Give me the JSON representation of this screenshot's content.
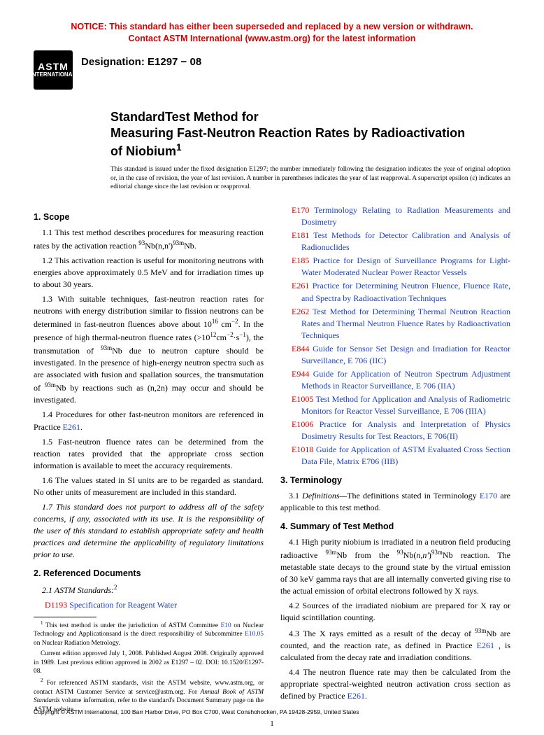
{
  "notice": {
    "line1": "NOTICE: This standard has either been superseded and replaced by a new version or withdrawn.",
    "line2": "Contact ASTM International (www.astm.org) for the latest information"
  },
  "logo": {
    "top": "ASTM",
    "bottom": "INTERNATIONAL"
  },
  "designation": "Designation: E1297 − 08",
  "title": {
    "l1": "StandardTest Method for",
    "l2": "Measuring Fast-Neutron Reaction Rates by Radioactivation",
    "l3": "of Niobium"
  },
  "issue_note": "This standard is issued under the fixed designation E1297; the number immediately following the designation indicates the year of original adoption or, in the case of revision, the year of last revision. A number in parentheses indicates the year of last reapproval. A superscript epsilon (ε) indicates an editorial change since the last revision or reapproval.",
  "sections": {
    "scope_head": "1. Scope",
    "s11a": "1.1 This test method describes procedures for measuring reaction rates by the activation reaction ",
    "s11b": "Nb(n,n')",
    "s11c": "Nb.",
    "s12": "1.2 This activation reaction is useful for monitoring neutrons with energies above approximately 0.5 MeV and for irradiation times up to about 30 years.",
    "s13a": "1.3 With suitable techniques, fast-neutron reaction rates for neutrons with energy distribution similar to fission neutrons can be determined in fast-neutron fluences above about 10",
    "s13b": " cm",
    "s13c": ". In the presence of high thermal-neutron fluence rates (>10",
    "s13d": "cm",
    "s13e": "·s",
    "s13f": "), the transmutation of ",
    "s13g": "Nb due to neutron capture should be investigated. In the presence of high-energy neutron spectra such as are associated with fusion and spallation sources, the transmutation of ",
    "s13h": "Nb by reactions such as (n,2n) may occur and should be investigated.",
    "s14a": "1.4 Procedures for other fast-neutron monitors are referenced in Practice ",
    "s14b": ".",
    "s15": "1.5 Fast-neutron fluence rates can be determined from the reaction rates provided that the appropriate cross section information is available to meet the accuracy requirements.",
    "s16": "1.6 The values stated in SI units are to be regarded as standard. No other units of measurement are included in this standard.",
    "s17": "1.7 This standard does not purport to address all of the safety concerns, if any, associated with its use. It is the responsibility of the user of this standard to establish appropriate safety and health practices and determine the applicability of regulatory limitations prior to use.",
    "ref_head": "2. Referenced Documents",
    "s21": "2.1 ASTM Standards:",
    "term_head": "3. Terminology",
    "s31a": "3.1 ",
    "s31b": "Definitions—",
    "s31c": "The definitions stated in Terminology ",
    "s31d": " are applicable to this test method.",
    "sum_head": "4. Summary of Test Method",
    "s41a": "4.1 High purity niobium is irradiated in a neutron field producing radioactive ",
    "s41b": "Nb from the ",
    "s41c": "Nb(",
    "s41d": "n,n'",
    "s41e": ")",
    "s41f": "Nb reaction. The metastable state decays to the ground state by the virtual emission of 30 keV gamma rays that are all internally converted giving rise to the actual emission of orbital electrons followed by X rays.",
    "s42": "4.2 Sources of the irradiated niobium are prepared for X ray or liquid scintillation counting.",
    "s43a": "4.3 The X rays emitted as a result of the decay of ",
    "s43b": "Nb are counted, and the reaction rate, as defined in Practice ",
    "s43c": " , is calculated from the decay rate and irradiation conditions.",
    "s44a": "4.4 The neutron fluence rate may then be calculated from the appropriate spectral-weighted neutron activation cross section as defined by Practice ",
    "s44b": "."
  },
  "refs": [
    {
      "id": "D1193",
      "t": "Specification for Reagent Water"
    },
    {
      "id": "E170",
      "t": "Terminology Relating to Radiation Measurements and Dosimetry"
    },
    {
      "id": "E181",
      "t": "Test Methods for Detector Calibration and Analysis of Radionuclides"
    },
    {
      "id": "E185",
      "t": "Practice for Design of Surveillance Programs for Light-Water Moderated Nuclear Power Reactor Vessels"
    },
    {
      "id": "E261",
      "t": "Practice for Determining Neutron Fluence, Fluence Rate, and Spectra by Radioactivation Techniques"
    },
    {
      "id": "E262",
      "t": "Test Method for Determining Thermal Neutron Reaction Rates and Thermal Neutron Fluence Rates by Radioactivation Techniques"
    },
    {
      "id": "E844",
      "t": "Guide for Sensor Set Design and Irradiation for Reactor Surveillance, E 706 (IIC)"
    },
    {
      "id": "E944",
      "t": "Guide for Application of Neutron Spectrum Adjustment Methods in Reactor Surveillance, E 706 (IIA)"
    },
    {
      "id": "E1005",
      "t": "Test Method for Application and Analysis of Radiometric Monitors for Reactor Vessel Surveillance, E 706 (IIIA)"
    },
    {
      "id": "E1006",
      "t": "Practice for Analysis and Interpretation of Physics Dosimetry Results for Test Reactors, E 706(II)"
    },
    {
      "id": "E1018",
      "t": "Guide for Application of ASTM Evaluated Cross Section Data File, Matrix E706 (IIB)"
    }
  ],
  "inline_refs": {
    "E261": "E261",
    "E170": "E170",
    "E10": "E10",
    "E10_05": "E10.05"
  },
  "footnotes": {
    "f1a": " This test method is under the jurisdiction of ASTM Committee ",
    "f1b": " on Nuclear Technology and Applicationsand is the direct responsibility of Subcommittee ",
    "f1c": " on Nuclear Radiation Metrology.",
    "f1d": "Current edition approved July 1, 2008. Published August 2008. Originally approved in 1989. Last previous edition approved in 2002 as E1297 – 02. DOI: 10.1520/E1297-08.",
    "f2a": " For referenced ASTM standards, visit the ASTM website, www.astm.org, or contact ASTM Customer Service at service@astm.org. For ",
    "f2b": "Annual Book of ASTM Standards",
    "f2c": " volume information, refer to the standard's Document Summary page on the ASTM website."
  },
  "copyright": "Copyright © ASTM International, 100 Barr Harbor Drive, PO Box C700, West Conshohocken, PA 19428-2959, United States",
  "page_number": "1",
  "colors": {
    "notice_red": "#d40000",
    "link_blue": "#1a3fbf",
    "text": "#000000",
    "bg": "#ffffff"
  }
}
